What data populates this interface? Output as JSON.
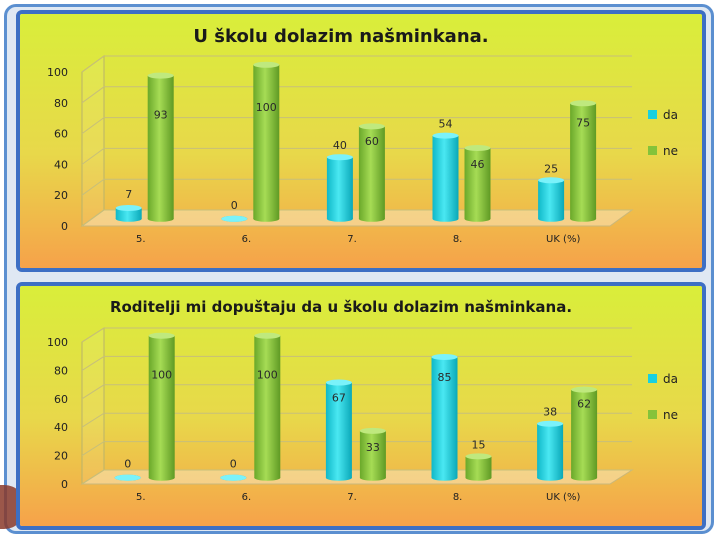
{
  "colors": {
    "da": "#19d0df",
    "ne": "#84c33a",
    "bg_top": "#d9ee3a",
    "bg_bottom": "#f6a24a",
    "frame": "#3d6fc4"
  },
  "chart_data": [
    {
      "type": "bar",
      "title": "U školu dolazim našminkana.",
      "categories": [
        "5.",
        "6.",
        "7.",
        "8.",
        "UK (%)"
      ],
      "series": [
        {
          "name": "da",
          "values": [
            7,
            0,
            40,
            54,
            25
          ]
        },
        {
          "name": "ne",
          "values": [
            93,
            100,
            60,
            46,
            75
          ]
        }
      ],
      "ylim": [
        0,
        100
      ],
      "yticks": [
        "0",
        "20",
        "40",
        "60",
        "80",
        "100"
      ],
      "xlabel": "",
      "ylabel": "",
      "legend": "right",
      "grid": true
    },
    {
      "type": "bar",
      "title": "Roditelji mi dopuštaju da u školu dolazim našminkana.",
      "categories": [
        "5.",
        "6.",
        "7.",
        "8.",
        "UK (%)"
      ],
      "series": [
        {
          "name": "da",
          "values": [
            0,
            0,
            67,
            85,
            38
          ]
        },
        {
          "name": "ne",
          "values": [
            100,
            100,
            33,
            15,
            62
          ]
        }
      ],
      "ylim": [
        0,
        100
      ],
      "yticks": [
        "0",
        "20",
        "40",
        "60",
        "80",
        "100"
      ],
      "xlabel": "",
      "ylabel": "",
      "legend": "right",
      "grid": true
    }
  ]
}
